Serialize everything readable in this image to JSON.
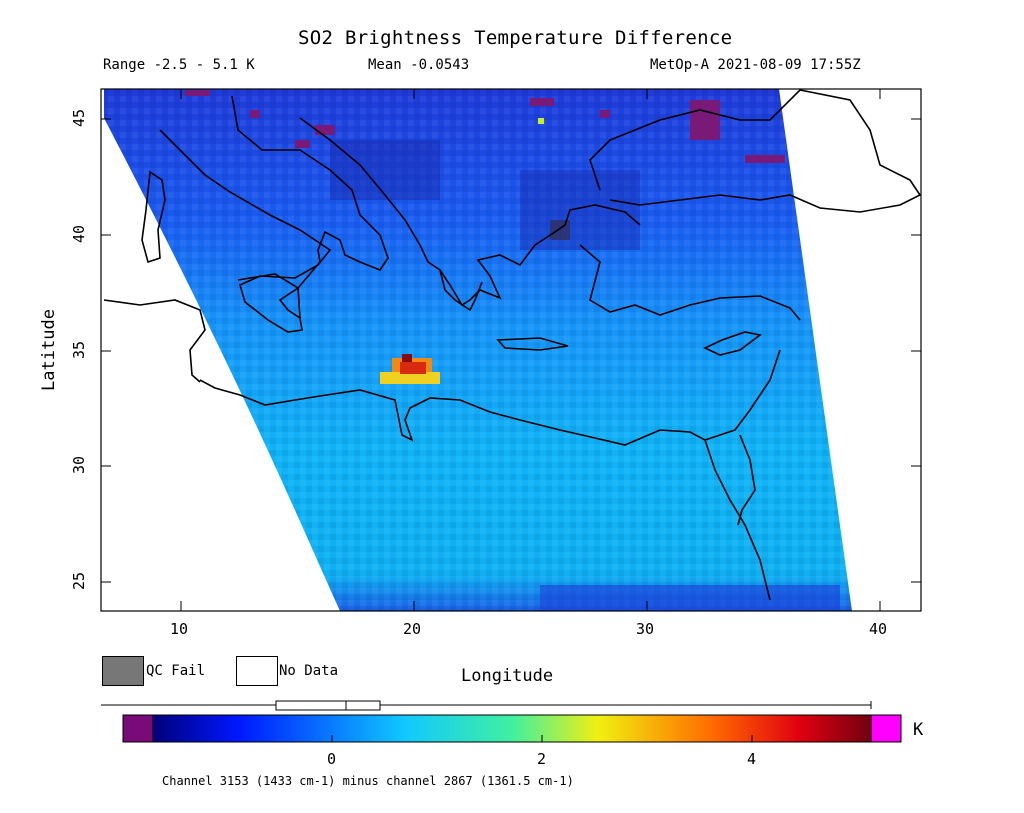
{
  "header": {
    "title": "SO2 Brightness Temperature Difference",
    "range_text": "Range -2.5 - 5.1 K",
    "mean_text": "Mean -0.0543",
    "satellite_text": "MetOp-A 2021-08-09 17:55Z"
  },
  "map": {
    "x_ticks": [
      "10",
      "20",
      "30",
      "40"
    ],
    "y_ticks": [
      "45",
      "40",
      "35",
      "30",
      "25"
    ],
    "xlabel": "Longitude",
    "ylabel": "Latitude",
    "lon_range": [
      6.8,
      41.8
    ],
    "lat_range": [
      23.7,
      46.2
    ],
    "colors": {
      "background_field": "#1e8bff",
      "north_field": "#1c3fe0",
      "south_field": "#11b0f4",
      "hotspot": "#d82a10",
      "coastline": "#000000"
    }
  },
  "legend": {
    "qc_fail_label": "QC Fail",
    "no_data_label": "No Data",
    "qc_fail_color": "#777777",
    "no_data_color": "#ffffff"
  },
  "colorbar": {
    "tick_labels": [
      "0",
      "2",
      "4"
    ],
    "unit": "K",
    "under_color": "#7a0a78",
    "over_color": "#ff00ff",
    "caption": "Channel 3153 (1433 cm-1) minus channel 2867 (1361.5 cm-1)"
  }
}
